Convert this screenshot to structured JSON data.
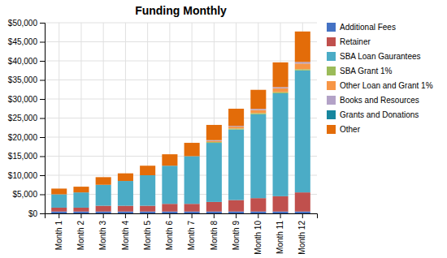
{
  "chart_data": {
    "type": "bar",
    "stacked": true,
    "title": "Funding Monthly",
    "categories": [
      "Month 1",
      "Month 2",
      "Month 3",
      "Month 4",
      "Month 5",
      "Month 6",
      "Month 7",
      "Month 8",
      "Month 9",
      "Month 10",
      "Month 11",
      "Month 12"
    ],
    "series": [
      {
        "name": "Additional Fees",
        "color": "#4472C4",
        "values": [
          500,
          500,
          500,
          500,
          500,
          500,
          500,
          500,
          500,
          500,
          500,
          500
        ]
      },
      {
        "name": "Retainer",
        "color": "#C0504D",
        "values": [
          1000,
          1000,
          1500,
          1500,
          1500,
          2000,
          2000,
          2500,
          3000,
          3500,
          4000,
          5000
        ]
      },
      {
        "name": "SBA Loan Gaurantees",
        "color": "#4BACC6",
        "values": [
          3500,
          4000,
          5500,
          6500,
          8000,
          10000,
          12500,
          15500,
          18500,
          22000,
          27000,
          32000
        ]
      },
      {
        "name": "SBA Grant 1%",
        "color": "#9BBB59",
        "values": [
          0,
          0,
          0,
          0,
          0,
          0,
          0,
          200,
          250,
          300,
          300,
          300
        ]
      },
      {
        "name": "Other Loan and Grant 1%",
        "color": "#F79646",
        "values": [
          0,
          0,
          0,
          0,
          0,
          0,
          0,
          300,
          500,
          800,
          1000,
          1500
        ]
      },
      {
        "name": "Books and Resources",
        "color": "#B3A2C7",
        "values": [
          0,
          0,
          0,
          0,
          0,
          0,
          0,
          200,
          200,
          300,
          300,
          400
        ]
      },
      {
        "name": "Grants and Donations",
        "color": "#17869E",
        "values": [
          0,
          0,
          0,
          0,
          0,
          0,
          0,
          0,
          0,
          0,
          0,
          0
        ]
      },
      {
        "name": "Other",
        "color": "#E36C09",
        "values": [
          1500,
          1500,
          2000,
          2000,
          2500,
          3000,
          3500,
          4000,
          4500,
          5000,
          6500,
          8000
        ]
      }
    ],
    "ylim": [
      0,
      50000
    ],
    "yticks": [
      {
        "value": 0,
        "label": "$0"
      },
      {
        "value": 5000,
        "label": "$5,000"
      },
      {
        "value": 10000,
        "label": "$10,000"
      },
      {
        "value": 15000,
        "label": "$15,000"
      },
      {
        "value": 20000,
        "label": "$20,000"
      },
      {
        "value": 25000,
        "label": "$25,000"
      },
      {
        "value": 30000,
        "label": "$30,000"
      },
      {
        "value": 35000,
        "label": "$35,000"
      },
      {
        "value": 40000,
        "label": "$40,000"
      },
      {
        "value": 45000,
        "label": "$45,000"
      },
      {
        "value": 50000,
        "label": "$50,000"
      }
    ],
    "grid": true,
    "legend": "right"
  }
}
